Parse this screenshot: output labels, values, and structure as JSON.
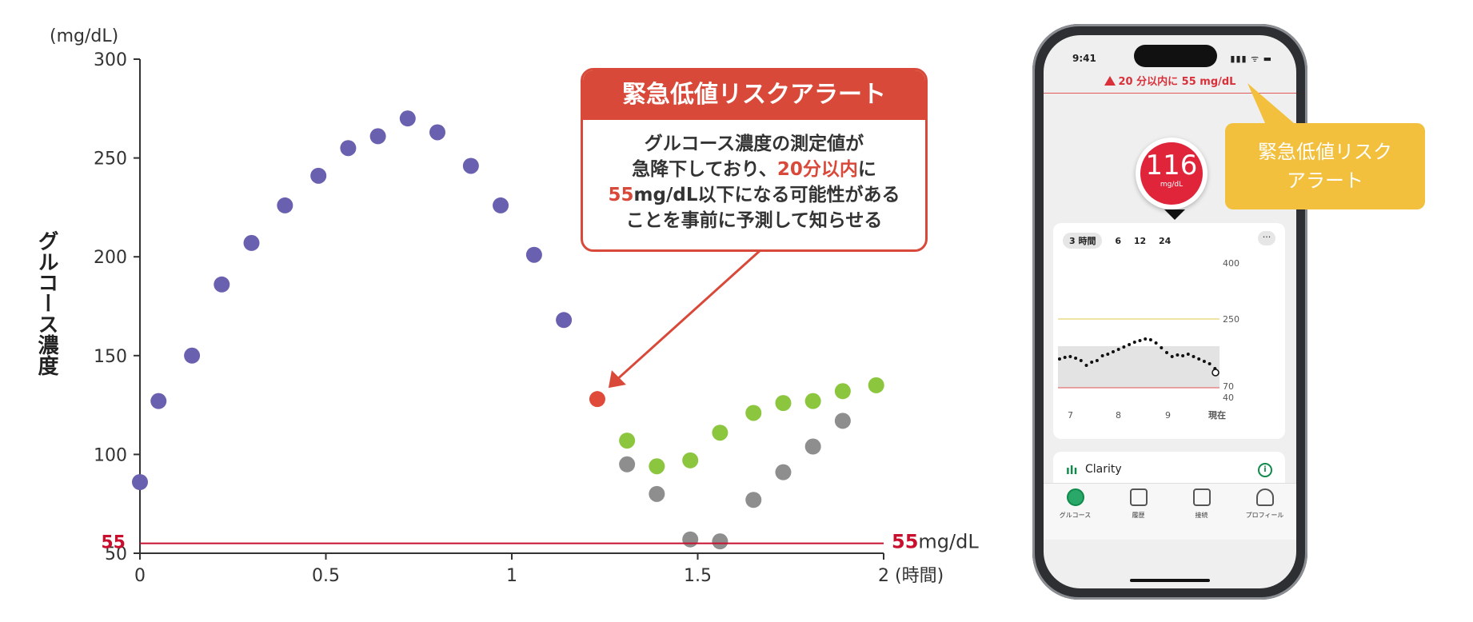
{
  "chart_data": {
    "type": "scatter",
    "y_unit": "(mg/dL)",
    "ylabel": "グルコース濃度",
    "x_unit": "(時間)",
    "xlim": [
      0,
      2
    ],
    "ylim": [
      50,
      300
    ],
    "x_ticks": [
      "0",
      "0.5",
      "1",
      "1.5",
      "2"
    ],
    "y_ticks": [
      "300",
      "250",
      "200",
      "150",
      "100",
      "50"
    ],
    "threshold": {
      "value": 55,
      "axis_label": "55",
      "line_label_value": "55",
      "line_label_unit": "mg/dL",
      "color": "#c8102e"
    },
    "series": [
      {
        "color": "#6a60b0",
        "points": [
          [
            0,
            86
          ],
          [
            0.05,
            127
          ],
          [
            0.14,
            150
          ],
          [
            0.22,
            186
          ],
          [
            0.3,
            207
          ],
          [
            0.39,
            226
          ],
          [
            0.48,
            241
          ],
          [
            0.56,
            255
          ],
          [
            0.64,
            261
          ],
          [
            0.72,
            270
          ],
          [
            0.8,
            263
          ],
          [
            0.89,
            246
          ],
          [
            0.97,
            226
          ],
          [
            1.06,
            201
          ],
          [
            1.14,
            168
          ]
        ]
      },
      {
        "color": "#e04a3a",
        "points": [
          [
            1.23,
            128
          ]
        ]
      },
      {
        "color": "#8cc63f",
        "points": [
          [
            1.31,
            107
          ],
          [
            1.39,
            94
          ],
          [
            1.48,
            97
          ],
          [
            1.56,
            111
          ],
          [
            1.65,
            121
          ],
          [
            1.73,
            126
          ],
          [
            1.81,
            127
          ],
          [
            1.89,
            132
          ],
          [
            1.98,
            135
          ]
        ]
      },
      {
        "color": "#8e8e8e",
        "points": [
          [
            1.31,
            95
          ],
          [
            1.39,
            80
          ],
          [
            1.48,
            57
          ],
          [
            1.56,
            56
          ],
          [
            1.65,
            77
          ],
          [
            1.73,
            91
          ],
          [
            1.81,
            104
          ],
          [
            1.89,
            117
          ]
        ]
      }
    ]
  },
  "callout": {
    "title": "緊急低値リスクアラート",
    "line1": "グルコース濃度の測定値が",
    "line2_pre": "急降下しており、",
    "line2_red": "20分以内",
    "line2_post": "に",
    "line3_red": "55",
    "line3_post": "mg/dL以下になる可能性がある",
    "line4": "ことを事前に予測して知らせる"
  },
  "phone": {
    "status_time": "9:41",
    "status_icons": "▮▮▮ ᯤ ▬",
    "alert_text": "20 分以内に 55 mg/dL",
    "reading_value": "116",
    "reading_unit": "mg/dL",
    "range_tabs": [
      "3 時間",
      "6",
      "12",
      "24"
    ],
    "more_label": "···",
    "graph_y_labels": [
      "400",
      "250",
      "70",
      "40"
    ],
    "graph_x_labels": [
      "7",
      "8",
      "9",
      "現在"
    ],
    "clarity_label": "Clarity",
    "clarity_info": "i",
    "tabs": [
      "グルコース",
      "履歴",
      "接続",
      "プロフィール"
    ]
  },
  "phone_callout": {
    "line1": "緊急低値リスク",
    "line2": "アラート"
  },
  "colors": {
    "accent_red": "#d9493a",
    "threshold_red": "#c8102e",
    "callout_yellow": "#f2c03d"
  }
}
